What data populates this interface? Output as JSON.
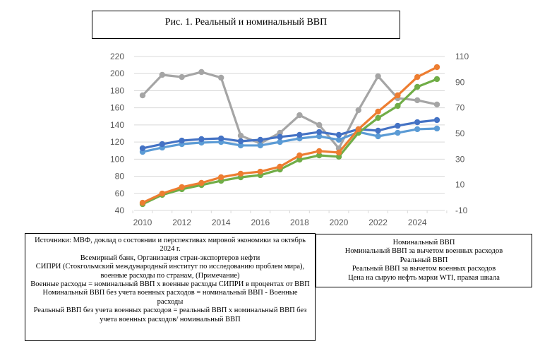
{
  "title": "Рис. 1. Реальный и номинальный ВВП",
  "chart_data": {
    "type": "line",
    "title": "Рис. 1. Реальный и номинальный ВВП",
    "xlabel": "",
    "ylabel": "",
    "x": [
      2010,
      2011,
      2012,
      2013,
      2014,
      2015,
      2016,
      2017,
      2018,
      2019,
      2020,
      2021,
      2022,
      2023,
      2024,
      2025
    ],
    "x_ticks": [
      "2010",
      "2012",
      "2014",
      "2016",
      "2018",
      "2020",
      "2022",
      "2024"
    ],
    "x_tick_values": [
      2010,
      2012,
      2014,
      2016,
      2018,
      2020,
      2022,
      2024
    ],
    "ylim": [
      40,
      220
    ],
    "y_ticks": [
      "40",
      "60",
      "80",
      "100",
      "120",
      "140",
      "160",
      "180",
      "200",
      "220"
    ],
    "y2lim": [
      -10,
      110
    ],
    "y2_ticks": [
      "-10",
      "10",
      "30",
      "50",
      "70",
      "90",
      "110"
    ],
    "grid": true,
    "legend_position": "bottom-right (separate box)",
    "series": [
      {
        "name": "Номинальный ВВП",
        "color": "#ED7D31",
        "axis": "left",
        "values": [
          49,
          59.8,
          67.3,
          72.2,
          78.8,
          83,
          85.4,
          91.2,
          104.4,
          109.4,
          107.7,
          135,
          155.6,
          174.6,
          196,
          207.6
        ]
      },
      {
        "name": "Номинальный ВВП за вычетом военных расходов",
        "color": "#70AD47",
        "axis": "left",
        "values": [
          47.4,
          58.2,
          64.8,
          69.7,
          74.7,
          78.8,
          81.3,
          87.9,
          99.4,
          104.4,
          102.8,
          130.8,
          148.2,
          162.2,
          184.5,
          193.6
        ]
      },
      {
        "name": "Реальный ВВП",
        "color": "#4472C4",
        "axis": "left",
        "values": [
          112.7,
          117.6,
          121.7,
          123.4,
          124.2,
          121,
          122.6,
          126,
          128.4,
          131.7,
          128.4,
          135,
          133.3,
          139,
          143.2,
          145.7
        ]
      },
      {
        "name": "Реальный ВВП за вычетом военных расходов",
        "color": "#5B9BD5",
        "axis": "left",
        "values": [
          108.5,
          113.5,
          117.6,
          119.3,
          120.1,
          116,
          116,
          120.1,
          124.2,
          126.7,
          122.6,
          131.7,
          126.7,
          130.8,
          135,
          135.8
        ]
      },
      {
        "name": "Цена на сырую нефть марки WTI, правая шкала",
        "color": "#A5A5A5",
        "axis": "right",
        "values": [
          79.7,
          95.7,
          94,
          97.9,
          93.5,
          48.3,
          42.3,
          50.5,
          64.3,
          56.6,
          38.4,
          68.2,
          94.6,
          77.5,
          75.9,
          72.6
        ]
      }
    ]
  },
  "sources": {
    "lines": [
      "Источники: МВФ, доклад о состоянии и перспективах мировой экономики за октябрь 2024 г.",
      "Всемирный банк, Организация стран-экспортеров нефти",
      "СИПРИ (Стокгольмский международный институт по исследованию проблем мира), военные расходы по странам, (Примечание)",
      "Военные расходы = номинальный ВВП х военные расходы СИПРИ в процентах от ВВП",
      "Номинальный ВВП без учета военных расходов = номинальный ВВП - Военные расходы",
      "Реальный ВВП без учета военных расходов = реальный ВВП х номинальный ВВП без учета военных расходов/ номинальный ВВП"
    ]
  },
  "legend": {
    "items": [
      "Номинальный ВВП",
      "Номинальный ВВП за вычетом военных расходов",
      "Реальный ВВП",
      "Реальный ВВП за вычетом военных расходов",
      "Цена на сырую нефть марки WTI, правая шкала"
    ]
  }
}
